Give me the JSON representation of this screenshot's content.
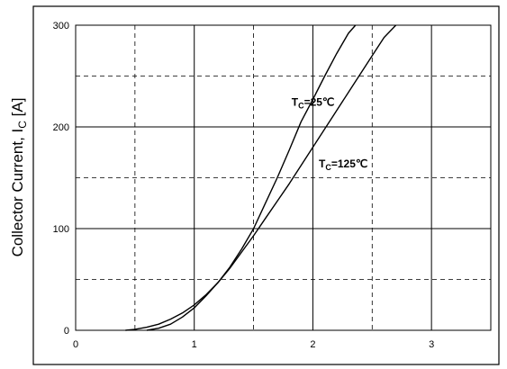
{
  "chart_data": {
    "type": "line",
    "ylabel_main": "Collector Current, I",
    "ylabel_sub": "C",
    "ylabel_unit": " [A]",
    "xlim": [
      0,
      3.5
    ],
    "ylim": [
      0,
      300
    ],
    "x_ticks": [
      0,
      1,
      2,
      3
    ],
    "x_tick_labels": [
      "0",
      "1",
      "2",
      "3"
    ],
    "y_ticks": [
      0,
      100,
      200,
      300
    ],
    "y_tick_labels": [
      "0",
      "100",
      "200",
      "300"
    ],
    "grid": {
      "major_solid": true,
      "minor_dashed": true,
      "minor_step_x": 0.5,
      "minor_step_y": 50
    },
    "series": [
      {
        "name_main": "T",
        "name_sub": "C",
        "name_rest": "=25℃",
        "color": "#000000",
        "x": [
          0.42,
          0.5,
          0.6,
          0.7,
          0.8,
          0.9,
          1.0,
          1.1,
          1.2,
          1.3,
          1.4,
          1.5,
          1.6,
          1.7,
          1.8,
          1.9,
          2.0,
          2.1,
          2.2,
          2.3,
          2.36
        ],
        "y": [
          0,
          1,
          3,
          6,
          11,
          17,
          25,
          35,
          47,
          62,
          80,
          100,
          125,
          150,
          177,
          205,
          227,
          250,
          272,
          292,
          300
        ]
      },
      {
        "name_main": "T",
        "name_sub": "C",
        "name_rest": "=125℃",
        "color": "#000000",
        "x": [
          0.6,
          0.7,
          0.8,
          0.9,
          1.0,
          1.1,
          1.2,
          1.3,
          1.4,
          1.5,
          1.6,
          1.7,
          1.8,
          1.9,
          2.0,
          2.1,
          2.2,
          2.3,
          2.4,
          2.5,
          2.6,
          2.7
        ],
        "y": [
          0,
          2,
          6,
          13,
          22,
          34,
          47,
          61,
          77,
          93,
          110,
          127,
          144,
          162,
          180,
          198,
          216,
          234,
          252,
          270,
          288,
          300
        ]
      }
    ],
    "annotations": [
      {
        "series": 0,
        "at_x": 1.82,
        "at_y": 221
      },
      {
        "series": 1,
        "at_x": 2.05,
        "at_y": 160
      }
    ]
  }
}
